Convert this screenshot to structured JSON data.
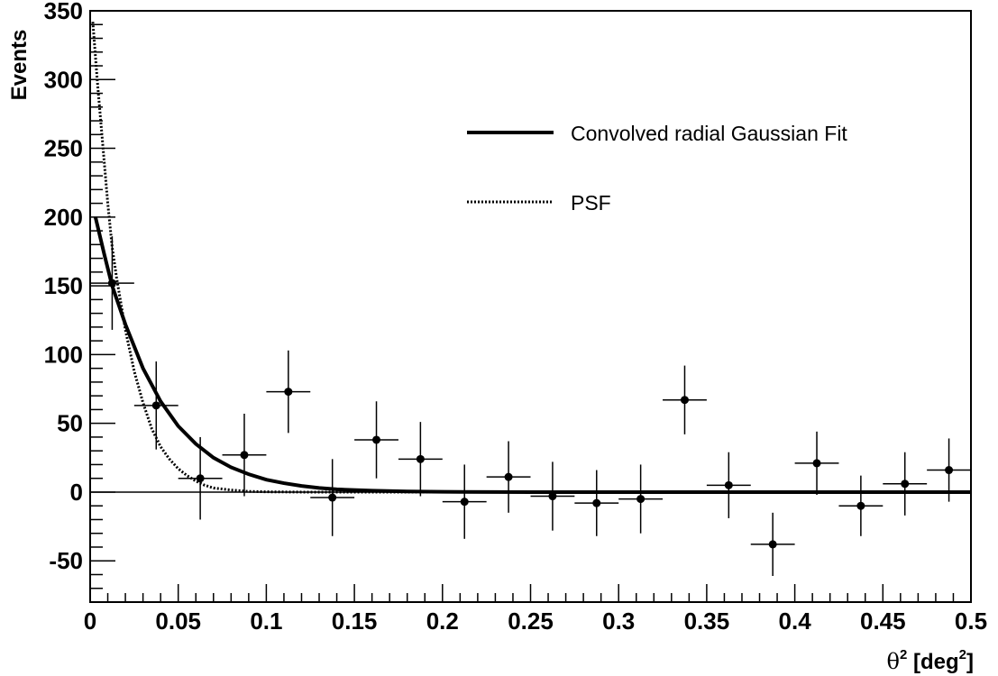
{
  "chart_data": {
    "type": "scatter",
    "ylabel": "Events",
    "xlabel": {
      "symbol": "θ",
      "sup": "2",
      "unit_pre": " [deg",
      "unit_sup": "2",
      "unit_post": "]"
    },
    "xlim": [
      0,
      0.5
    ],
    "ylim": [
      -80,
      350
    ],
    "x_ticks": [
      "0",
      "0.05",
      "0.1",
      "0.15",
      "0.2",
      "0.25",
      "0.3",
      "0.35",
      "0.4",
      "0.45",
      "0.5"
    ],
    "y_ticks": [
      "-50",
      "0",
      "50",
      "100",
      "150",
      "200",
      "250",
      "300",
      "350"
    ],
    "grid": false,
    "legend_position": "top-right",
    "legend": [
      {
        "label": "Convolved radial Gaussian Fit",
        "style": "solid"
      },
      {
        "label": "PSF",
        "style": "dotted"
      }
    ],
    "series": [
      {
        "type": "points-with-errors",
        "x_err": 0.0125,
        "points": [
          {
            "x": 0.0125,
            "y": 152,
            "yerr": 34
          },
          {
            "x": 0.0375,
            "y": 63,
            "yerr": 32
          },
          {
            "x": 0.0625,
            "y": 10,
            "yerr": 30
          },
          {
            "x": 0.0875,
            "y": 27,
            "yerr": 30
          },
          {
            "x": 0.1125,
            "y": 73,
            "yerr": 30
          },
          {
            "x": 0.1375,
            "y": -4,
            "yerr": 28
          },
          {
            "x": 0.1625,
            "y": 38,
            "yerr": 28
          },
          {
            "x": 0.1875,
            "y": 24,
            "yerr": 27
          },
          {
            "x": 0.2125,
            "y": -7,
            "yerr": 27
          },
          {
            "x": 0.2375,
            "y": 11,
            "yerr": 26
          },
          {
            "x": 0.2625,
            "y": -3,
            "yerr": 25
          },
          {
            "x": 0.2875,
            "y": -8,
            "yerr": 24
          },
          {
            "x": 0.3125,
            "y": -5,
            "yerr": 25
          },
          {
            "x": 0.3375,
            "y": 67,
            "yerr": 25
          },
          {
            "x": 0.3625,
            "y": 5,
            "yerr": 24
          },
          {
            "x": 0.3875,
            "y": -38,
            "yerr": 23
          },
          {
            "x": 0.4125,
            "y": 21,
            "yerr": 23
          },
          {
            "x": 0.4375,
            "y": -10,
            "yerr": 22
          },
          {
            "x": 0.4625,
            "y": 6,
            "yerr": 23
          },
          {
            "x": 0.4875,
            "y": 16,
            "yerr": 23
          }
        ]
      },
      {
        "type": "curve-solid",
        "points": [
          [
            0.003,
            200
          ],
          [
            0.008,
            173
          ],
          [
            0.0125,
            150
          ],
          [
            0.02,
            122
          ],
          [
            0.03,
            90
          ],
          [
            0.04,
            66
          ],
          [
            0.05,
            48
          ],
          [
            0.06,
            35
          ],
          [
            0.07,
            25
          ],
          [
            0.08,
            18
          ],
          [
            0.09,
            13
          ],
          [
            0.1,
            9
          ],
          [
            0.11,
            6.5
          ],
          [
            0.12,
            4.5
          ],
          [
            0.13,
            3
          ],
          [
            0.14,
            2
          ],
          [
            0.16,
            1
          ],
          [
            0.18,
            0.5
          ],
          [
            0.2,
            0.2
          ],
          [
            0.25,
            0
          ],
          [
            0.5,
            0
          ]
        ]
      },
      {
        "type": "curve-dotted",
        "points": [
          [
            0.0015,
            342
          ],
          [
            0.004,
            300
          ],
          [
            0.007,
            255
          ],
          [
            0.01,
            210
          ],
          [
            0.0125,
            178
          ],
          [
            0.015,
            156
          ],
          [
            0.02,
            118
          ],
          [
            0.025,
            88
          ],
          [
            0.03,
            65
          ],
          [
            0.035,
            46
          ],
          [
            0.04,
            33
          ],
          [
            0.045,
            24
          ],
          [
            0.05,
            17
          ],
          [
            0.055,
            12
          ],
          [
            0.06,
            8
          ],
          [
            0.065,
            5
          ],
          [
            0.07,
            3
          ],
          [
            0.08,
            1.5
          ],
          [
            0.09,
            0.5
          ],
          [
            0.1,
            0.2
          ],
          [
            0.12,
            0
          ],
          [
            0.5,
            0
          ]
        ]
      }
    ]
  }
}
